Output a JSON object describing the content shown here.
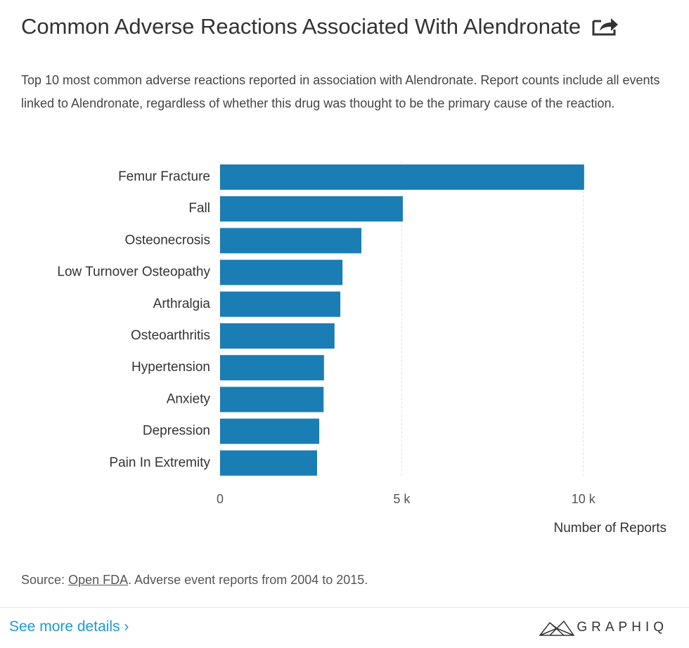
{
  "chart_data": {
    "type": "bar",
    "orientation": "horizontal",
    "title": "Common Adverse Reactions Associated With Alendronate",
    "subtitle": "Top 10 most common adverse reactions reported in association with Alendronate. Report counts include all events linked to Alendronate, regardless of whether this drug was thought to be the primary cause of the reaction.",
    "categories": [
      "Femur Fracture",
      "Fall",
      "Osteonecrosis",
      "Low Turnover Osteopathy",
      "Arthralgia",
      "Osteoarthritis",
      "Hypertension",
      "Anxiety",
      "Depression",
      "Pain In Extremity"
    ],
    "values": [
      10020,
      5030,
      3890,
      3370,
      3310,
      3150,
      2860,
      2850,
      2730,
      2670
    ],
    "color": "#1a7db3",
    "xlim": [
      0,
      12500
    ],
    "xticks": [
      0,
      {
        "value": 5000,
        "label": "5 k"
      },
      {
        "value": 10000,
        "label": "10 k"
      }
    ],
    "x_label": "Number of Reports",
    "grid": true,
    "source_prefix": "Source:",
    "source_link": "Open FDA",
    "source_suffix": ". Adverse event reports from 2004 to 2015.",
    "details_link": "See more details ›",
    "brand": "GRAPHIQ"
  }
}
